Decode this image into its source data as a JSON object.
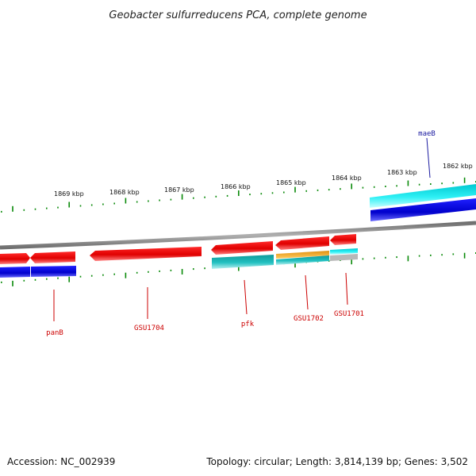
{
  "title": "Geobacter sulfurreducens PCA, complete genome",
  "footer": {
    "accession": "Accession: NC_002939",
    "topology": "Topology: circular; Length: 3,814,139 bp; Genes: 3,502"
  },
  "ruler_labels": [
    "1869 kbp",
    "1868 kbp",
    "1867 kbp",
    "1866 kbp",
    "1865 kbp",
    "1864 kbp",
    "1863 kbp",
    "1862 kbp"
  ],
  "gene_labels": [
    {
      "name": "maeB",
      "color": "#1a1aa0"
    },
    {
      "name": "panB",
      "color": "#cc0000"
    },
    {
      "name": "GSU1704",
      "color": "#cc0000"
    },
    {
      "name": "pfk",
      "color": "#cc0000"
    },
    {
      "name": "GSU1702",
      "color": "#cc0000"
    },
    {
      "name": "GSU1701",
      "color": "#cc0000"
    }
  ],
  "colors": {
    "forward_cds": "#ee0000",
    "forward_gene": "#0000dd",
    "reverse_cds": "#dd0000",
    "reverse_gene": "#0000cc",
    "feature_cyan": "#00d8e0",
    "feature_teal": "#1ab0b0",
    "feature_orange": "#f0a020",
    "backbone": "#8a8a8a",
    "ticks": "#0a8a0a"
  }
}
